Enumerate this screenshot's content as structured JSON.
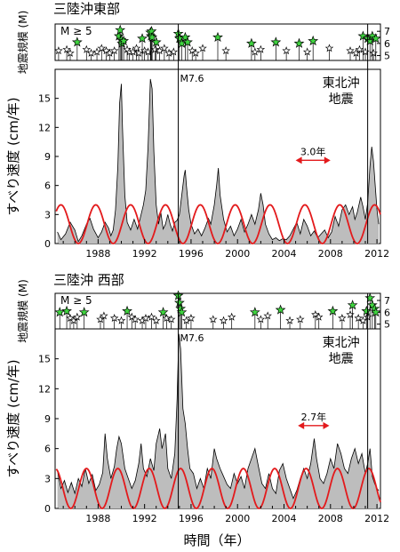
{
  "colors": {
    "slip_fill": "#bdbdbd",
    "slip_line": "#000000",
    "periodic_line": "#e31a1c",
    "star_fill_large": "#3fd43f",
    "star_fill_small": "#ffffff",
    "axis": "#000000"
  },
  "x_axis_title": "時間（年）",
  "chart_data": [
    {
      "type": "area",
      "title": "三陸沖東部",
      "ylabel": "すべり速度 (cm/年)",
      "mag_panel": {
        "ylabel": "地震規模 (M)",
        "label": "M ≥ 5",
        "ticks": [
          5,
          6,
          7
        ],
        "ylim": [
          4.6,
          7.6
        ]
      },
      "xlim": [
        1984.3,
        2012.3
      ],
      "xticks": [
        1988,
        1992,
        1996,
        2000,
        2004,
        2008,
        2012
      ],
      "ylim": [
        0,
        18
      ],
      "yticks": [
        0,
        3,
        6,
        9,
        12,
        15
      ],
      "events": [
        {
          "label": "M7.6",
          "x": 1994.9
        },
        {
          "label": "東北沖\n地震",
          "x": 2011.2
        }
      ],
      "period_annotation": {
        "label": "3.0年",
        "x_from": 2005,
        "x_to": 2008
      },
      "periodic_curve": {
        "mean": 2.0,
        "amplitude": 2.0,
        "period_years": 3.0,
        "peak_year": 1987.8
      },
      "slip_rate": [
        [
          1984.5,
          1.2
        ],
        [
          1984.8,
          0.4
        ],
        [
          1985.2,
          1.0
        ],
        [
          1985.6,
          2.2
        ],
        [
          1986.0,
          1.4
        ],
        [
          1986.3,
          0.2
        ],
        [
          1986.6,
          0.8
        ],
        [
          1987.0,
          2.0
        ],
        [
          1987.3,
          2.6
        ],
        [
          1987.6,
          1.5
        ],
        [
          1988.0,
          0.6
        ],
        [
          1988.3,
          1.2
        ],
        [
          1988.6,
          2.2
        ],
        [
          1988.9,
          1.6
        ],
        [
          1989.1,
          0.8
        ],
        [
          1989.3,
          1.4
        ],
        [
          1989.5,
          3.5
        ],
        [
          1989.7,
          8.0
        ],
        [
          1989.85,
          14.5
        ],
        [
          1990.0,
          16.5
        ],
        [
          1990.1,
          12.0
        ],
        [
          1990.3,
          5.0
        ],
        [
          1990.5,
          2.2
        ],
        [
          1990.8,
          1.4
        ],
        [
          1991.1,
          2.5
        ],
        [
          1991.4,
          1.5
        ],
        [
          1991.7,
          3.0
        ],
        [
          1991.9,
          4.0
        ],
        [
          1992.1,
          5.5
        ],
        [
          1992.3,
          10.0
        ],
        [
          1992.5,
          17.0
        ],
        [
          1992.65,
          16.0
        ],
        [
          1992.8,
          9.5
        ],
        [
          1993.0,
          4.0
        ],
        [
          1993.2,
          2.0
        ],
        [
          1993.4,
          3.2
        ],
        [
          1993.6,
          1.5
        ],
        [
          1993.8,
          2.0
        ],
        [
          1994.0,
          3.0
        ],
        [
          1994.2,
          2.0
        ],
        [
          1994.4,
          1.3
        ],
        [
          1994.6,
          2.2
        ],
        [
          1994.8,
          2.4
        ],
        [
          1995.0,
          3.0
        ],
        [
          1995.2,
          5.0
        ],
        [
          1995.4,
          7.0
        ],
        [
          1995.5,
          7.6
        ],
        [
          1995.6,
          6.0
        ],
        [
          1995.8,
          3.5
        ],
        [
          1996.0,
          2.0
        ],
        [
          1996.3,
          1.0
        ],
        [
          1996.6,
          1.5
        ],
        [
          1996.9,
          0.8
        ],
        [
          1997.2,
          1.6
        ],
        [
          1997.5,
          2.6
        ],
        [
          1997.7,
          2.0
        ],
        [
          1998.0,
          4.0
        ],
        [
          1998.2,
          6.0
        ],
        [
          1998.35,
          7.8
        ],
        [
          1998.5,
          5.0
        ],
        [
          1998.8,
          2.5
        ],
        [
          1999.1,
          1.2
        ],
        [
          1999.4,
          1.8
        ],
        [
          1999.7,
          0.8
        ],
        [
          2000.0,
          1.5
        ],
        [
          2000.3,
          2.5
        ],
        [
          2000.6,
          1.2
        ],
        [
          2000.9,
          2.0
        ],
        [
          2001.2,
          3.0
        ],
        [
          2001.5,
          2.0
        ],
        [
          2001.8,
          3.5
        ],
        [
          2002.0,
          5.2
        ],
        [
          2002.2,
          4.0
        ],
        [
          2002.4,
          2.0
        ],
        [
          2002.7,
          1.0
        ],
        [
          2003.0,
          0.4
        ],
        [
          2003.3,
          0.6
        ],
        [
          2003.6,
          0.3
        ],
        [
          2003.9,
          0.5
        ],
        [
          2004.2,
          0.4
        ],
        [
          2004.5,
          0.8
        ],
        [
          2004.8,
          1.5
        ],
        [
          2005.1,
          2.2
        ],
        [
          2005.4,
          1.0
        ],
        [
          2005.7,
          2.5
        ],
        [
          2006.0,
          1.8
        ],
        [
          2006.3,
          0.8
        ],
        [
          2006.6,
          1.3
        ],
        [
          2006.9,
          0.6
        ],
        [
          2007.2,
          1.0
        ],
        [
          2007.5,
          1.4
        ],
        [
          2007.8,
          0.6
        ],
        [
          2008.1,
          1.2
        ],
        [
          2008.4,
          2.8
        ],
        [
          2008.7,
          1.8
        ],
        [
          2009.0,
          3.5
        ],
        [
          2009.3,
          4.0
        ],
        [
          2009.6,
          3.0
        ],
        [
          2009.9,
          3.8
        ],
        [
          2010.1,
          2.5
        ],
        [
          2010.3,
          3.2
        ],
        [
          2010.6,
          4.8
        ],
        [
          2010.8,
          3.8
        ],
        [
          2011.0,
          2.5
        ],
        [
          2011.2,
          4.2
        ],
        [
          2011.4,
          8.0
        ],
        [
          2011.55,
          10.0
        ],
        [
          2011.7,
          8.5
        ],
        [
          2011.85,
          6.0
        ],
        [
          2012.0,
          3.5
        ],
        [
          2012.15,
          2.0
        ]
      ],
      "earthquakes_M6plus": [
        [
          1986.2,
          6.1
        ],
        [
          1989.8,
          6.6
        ],
        [
          1989.9,
          7.1
        ],
        [
          1990.0,
          6.3
        ],
        [
          1990.05,
          6.0
        ],
        [
          1990.2,
          6.2
        ],
        [
          1991.8,
          6.4
        ],
        [
          1992.5,
          6.9
        ],
        [
          1992.55,
          6.6
        ],
        [
          1992.6,
          7.0
        ],
        [
          1992.65,
          6.5
        ],
        [
          1993.0,
          6.1
        ],
        [
          1994.9,
          6.8
        ],
        [
          1995.0,
          6.4
        ],
        [
          1995.2,
          6.0
        ],
        [
          1995.5,
          6.5
        ],
        [
          1995.7,
          6.1
        ],
        [
          1998.3,
          6.5
        ],
        [
          2001.2,
          6.0
        ],
        [
          2003.3,
          6.1
        ],
        [
          2005.3,
          6.0
        ],
        [
          2006.5,
          6.2
        ],
        [
          2010.8,
          6.6
        ],
        [
          2011.2,
          6.4
        ],
        [
          2011.4,
          6.2
        ],
        [
          2011.6,
          6.6
        ],
        [
          2011.9,
          6.4
        ]
      ],
      "earthquakes_M5": [
        [
          1984.6,
          5.4
        ],
        [
          1985.3,
          5.5
        ],
        [
          1985.6,
          5.2
        ],
        [
          1987.0,
          5.5
        ],
        [
          1987.4,
          5.2
        ],
        [
          1987.9,
          5.3
        ],
        [
          1988.3,
          5.6
        ],
        [
          1988.7,
          5.4
        ],
        [
          1989.0,
          5.2
        ],
        [
          1989.4,
          5.4
        ],
        [
          1990.5,
          5.5
        ],
        [
          1990.7,
          5.3
        ],
        [
          1991.0,
          5.3
        ],
        [
          1991.3,
          5.6
        ],
        [
          1991.5,
          5.2
        ],
        [
          1992.0,
          5.4
        ],
        [
          1992.3,
          5.3
        ],
        [
          1992.9,
          5.5
        ],
        [
          1993.3,
          5.4
        ],
        [
          1993.7,
          5.6
        ],
        [
          1994.1,
          5.2
        ],
        [
          1994.5,
          5.3
        ],
        [
          1996.1,
          5.4
        ],
        [
          1996.4,
          5.2
        ],
        [
          1997.0,
          5.6
        ],
        [
          1999.0,
          5.4
        ],
        [
          2001.5,
          5.3
        ],
        [
          2002.0,
          5.5
        ],
        [
          2004.2,
          5.4
        ],
        [
          2006.0,
          5.3
        ],
        [
          2007.9,
          5.6
        ],
        [
          2009.7,
          5.4
        ],
        [
          2010.2,
          5.2
        ],
        [
          2010.5,
          5.5
        ],
        [
          2011.0,
          5.3
        ],
        [
          2011.7,
          5.2
        ]
      ]
    },
    {
      "type": "area",
      "title": "三陸沖 西部",
      "ylabel": "すべり速度 (cm/年)",
      "mag_panel": {
        "ylabel": "地震規模 (M)",
        "label": "M ≥ 5",
        "ticks": [
          5,
          6,
          7
        ],
        "ylim": [
          4.6,
          7.6
        ]
      },
      "xlim": [
        1984.3,
        2012.3
      ],
      "xticks": [
        1988,
        1992,
        1996,
        2000,
        2004,
        2008,
        2012
      ],
      "ylim": [
        0,
        18
      ],
      "yticks": [
        0,
        3,
        6,
        9,
        12,
        15
      ],
      "events": [
        {
          "label": "M7.6",
          "x": 1994.9
        },
        {
          "label": "東北沖\n地震",
          "x": 2011.2
        }
      ],
      "period_annotation": {
        "label": "2.7年",
        "x_from": 2005.2,
        "x_to": 2007.9
      },
      "periodic_curve": {
        "mean": 2.0,
        "amplitude": 2.0,
        "period_years": 2.7,
        "peak_year": 1989.7
      },
      "slip_rate": [
        [
          1984.5,
          3.8
        ],
        [
          1984.8,
          2.0
        ],
        [
          1985.1,
          2.8
        ],
        [
          1985.4,
          1.6
        ],
        [
          1985.7,
          2.6
        ],
        [
          1986.0,
          1.5
        ],
        [
          1986.3,
          3.0
        ],
        [
          1986.6,
          2.2
        ],
        [
          1986.9,
          4.0
        ],
        [
          1987.2,
          2.5
        ],
        [
          1987.5,
          3.4
        ],
        [
          1987.8,
          1.8
        ],
        [
          1988.1,
          2.4
        ],
        [
          1988.4,
          3.6
        ],
        [
          1988.6,
          7.5
        ],
        [
          1988.8,
          5.0
        ],
        [
          1989.1,
          3.0
        ],
        [
          1989.4,
          4.2
        ],
        [
          1989.6,
          6.0
        ],
        [
          1989.8,
          7.2
        ],
        [
          1990.0,
          6.5
        ],
        [
          1990.3,
          4.0
        ],
        [
          1990.6,
          3.0
        ],
        [
          1990.9,
          2.0
        ],
        [
          1991.2,
          2.8
        ],
        [
          1991.5,
          4.5
        ],
        [
          1991.7,
          6.5
        ],
        [
          1991.9,
          4.0
        ],
        [
          1992.2,
          3.2
        ],
        [
          1992.5,
          5.0
        ],
        [
          1992.8,
          3.8
        ],
        [
          1993.0,
          6.5
        ],
        [
          1993.3,
          8.0
        ],
        [
          1993.5,
          6.0
        ],
        [
          1993.8,
          7.5
        ],
        [
          1994.0,
          4.0
        ],
        [
          1994.3,
          3.0
        ],
        [
          1994.6,
          5.5
        ],
        [
          1994.8,
          11.0
        ],
        [
          1994.95,
          17.5
        ],
        [
          1995.1,
          16.0
        ],
        [
          1995.3,
          10.0
        ],
        [
          1995.5,
          8.5
        ],
        [
          1995.7,
          6.0
        ],
        [
          1995.9,
          4.0
        ],
        [
          1996.2,
          3.5
        ],
        [
          1996.5,
          2.0
        ],
        [
          1996.8,
          3.0
        ],
        [
          1997.1,
          2.0
        ],
        [
          1997.4,
          4.0
        ],
        [
          1997.7,
          3.0
        ],
        [
          1998.0,
          6.0
        ],
        [
          1998.2,
          5.0
        ],
        [
          1998.5,
          4.0
        ],
        [
          1998.8,
          3.2
        ],
        [
          1999.1,
          2.4
        ],
        [
          1999.4,
          2.0
        ],
        [
          1999.7,
          3.5
        ],
        [
          2000.0,
          2.5
        ],
        [
          2000.3,
          3.2
        ],
        [
          2000.6,
          2.0
        ],
        [
          2000.9,
          4.0
        ],
        [
          2001.2,
          5.0
        ],
        [
          2001.5,
          6.0
        ],
        [
          2001.8,
          4.2
        ],
        [
          2002.1,
          2.5
        ],
        [
          2002.4,
          2.0
        ],
        [
          2002.7,
          3.5
        ],
        [
          2003.0,
          2.0
        ],
        [
          2003.3,
          1.5
        ],
        [
          2003.6,
          3.8
        ],
        [
          2003.9,
          4.5
        ],
        [
          2004.2,
          3.0
        ],
        [
          2004.5,
          2.0
        ],
        [
          2004.8,
          1.0
        ],
        [
          2005.1,
          1.8
        ],
        [
          2005.4,
          3.0
        ],
        [
          2005.7,
          4.0
        ],
        [
          2006.0,
          3.0
        ],
        [
          2006.3,
          4.5
        ],
        [
          2006.6,
          7.0
        ],
        [
          2006.8,
          5.0
        ],
        [
          2007.1,
          3.0
        ],
        [
          2007.4,
          2.5
        ],
        [
          2007.7,
          3.5
        ],
        [
          2008.0,
          5.0
        ],
        [
          2008.3,
          4.0
        ],
        [
          2008.6,
          6.5
        ],
        [
          2008.9,
          5.5
        ],
        [
          2009.2,
          4.0
        ],
        [
          2009.5,
          3.5
        ],
        [
          2009.8,
          5.0
        ],
        [
          2010.1,
          6.0
        ],
        [
          2010.4,
          4.5
        ],
        [
          2010.7,
          5.5
        ],
        [
          2011.0,
          3.5
        ],
        [
          2011.2,
          4.5
        ],
        [
          2011.4,
          6.0
        ],
        [
          2011.6,
          3.2
        ],
        [
          2011.8,
          2.5
        ],
        [
          2012.0,
          2.0
        ],
        [
          2012.15,
          1.8
        ]
      ],
      "earthquakes_M6plus": [
        [
          1984.7,
          6.0
        ],
        [
          1985.3,
          6.1
        ],
        [
          1986.8,
          6.0
        ],
        [
          1990.5,
          6.1
        ],
        [
          1993.6,
          6.0
        ],
        [
          1994.9,
          7.4
        ],
        [
          1995.0,
          6.8
        ],
        [
          1995.1,
          6.3
        ],
        [
          1995.2,
          6.0
        ],
        [
          2001.5,
          6.0
        ],
        [
          2003.7,
          6.2
        ],
        [
          2008.2,
          6.1
        ],
        [
          2009.9,
          6.6
        ],
        [
          2011.1,
          6.1
        ],
        [
          2011.4,
          7.2
        ],
        [
          2011.6,
          6.6
        ],
        [
          2011.8,
          6.3
        ],
        [
          2011.9,
          6.0
        ]
      ],
      "earthquakes_M5": [
        [
          1985.6,
          5.5
        ],
        [
          1985.9,
          5.3
        ],
        [
          1986.2,
          5.6
        ],
        [
          1988.2,
          5.4
        ],
        [
          1988.5,
          5.7
        ],
        [
          1989.4,
          5.5
        ],
        [
          1990.0,
          5.3
        ],
        [
          1990.9,
          5.6
        ],
        [
          1991.2,
          5.4
        ],
        [
          1991.8,
          5.3
        ],
        [
          1992.1,
          5.5
        ],
        [
          1992.6,
          5.6
        ],
        [
          1993.0,
          5.3
        ],
        [
          1993.9,
          5.5
        ],
        [
          1994.3,
          5.4
        ],
        [
          1995.6,
          5.3
        ],
        [
          1996.0,
          5.5
        ],
        [
          1997.9,
          5.4
        ],
        [
          1998.8,
          5.3
        ],
        [
          1999.5,
          5.6
        ],
        [
          2002.0,
          5.4
        ],
        [
          2002.6,
          5.7
        ],
        [
          2004.5,
          5.3
        ],
        [
          2005.4,
          5.4
        ],
        [
          2006.7,
          5.8
        ],
        [
          2007.0,
          5.6
        ],
        [
          2009.0,
          5.5
        ],
        [
          2009.7,
          5.8
        ],
        [
          2010.4,
          5.5
        ],
        [
          2010.8,
          5.3
        ],
        [
          2011.2,
          5.6
        ]
      ]
    }
  ]
}
